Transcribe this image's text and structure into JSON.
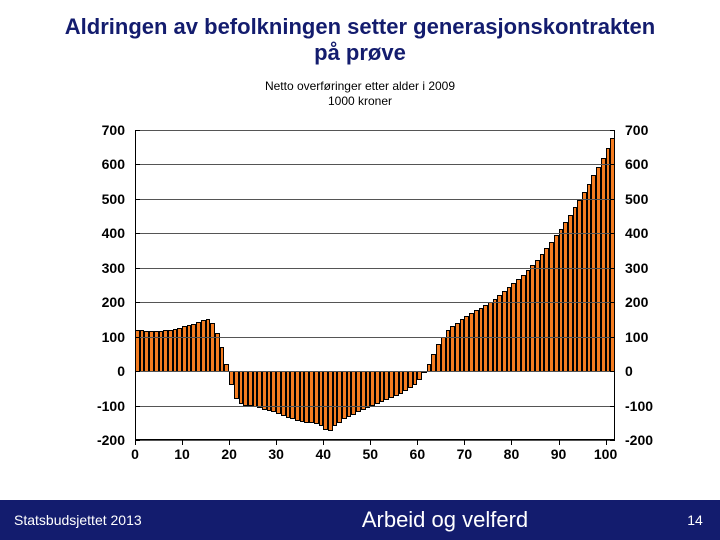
{
  "title": "Aldringen av befolkningen setter generasjonskontrakten på prøve",
  "subtitle_l1": "Netto overføringer etter alder i 2009",
  "subtitle_l2": "1000 kroner",
  "footer": {
    "left": "Statsbudsjettet 2013",
    "center": "Arbeid og velferd",
    "page": "14"
  },
  "chart": {
    "type": "bar",
    "bar_color": "#f47c20",
    "grid_color": "#555555",
    "background_color": "#ffffff",
    "font_bold": true,
    "label_fontsize": 14,
    "ylim": [
      -200,
      700
    ],
    "ytick_step": 100,
    "xlim": [
      0,
      102
    ],
    "xticks": [
      0,
      10,
      20,
      30,
      40,
      50,
      60,
      70,
      80,
      90,
      100
    ],
    "yticks": [
      -200,
      -100,
      0,
      100,
      200,
      300,
      400,
      500,
      600,
      700
    ],
    "values": [
      120,
      118,
      116,
      116,
      116,
      116,
      118,
      120,
      122,
      126,
      130,
      134,
      138,
      142,
      148,
      152,
      140,
      110,
      70,
      20,
      -40,
      -80,
      -95,
      -100,
      -100,
      -105,
      -108,
      -112,
      -116,
      -120,
      -125,
      -130,
      -135,
      -140,
      -145,
      -148,
      -150,
      -152,
      -155,
      -160,
      -170,
      -175,
      -160,
      -150,
      -140,
      -132,
      -126,
      -120,
      -114,
      -108,
      -102,
      -96,
      -90,
      -84,
      -78,
      -72,
      -66,
      -58,
      -50,
      -40,
      -25,
      -5,
      20,
      50,
      80,
      100,
      118,
      130,
      140,
      150,
      160,
      168,
      176,
      184,
      192,
      200,
      210,
      220,
      232,
      244,
      256,
      268,
      280,
      294,
      308,
      324,
      340,
      358,
      376,
      394,
      414,
      434,
      454,
      476,
      498,
      520,
      544,
      568,
      594,
      620,
      648,
      678
    ]
  }
}
